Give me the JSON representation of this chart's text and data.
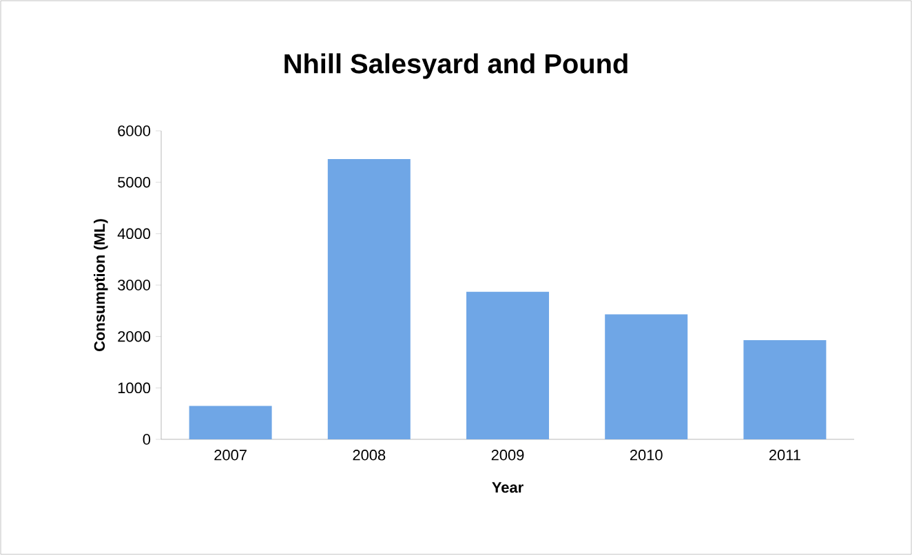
{
  "chart_data": {
    "type": "bar",
    "title": "Nhill Salesyard and Pound",
    "xlabel": "Year",
    "ylabel": "Consumption (ML)",
    "categories": [
      "2007",
      "2008",
      "2009",
      "2010",
      "2011"
    ],
    "values": [
      650,
      5450,
      2870,
      2430,
      1930
    ],
    "color": "#6fa6e6",
    "ylim": [
      0,
      6000
    ],
    "yticks": [
      0,
      1000,
      2000,
      3000,
      4000,
      5000,
      6000
    ]
  }
}
